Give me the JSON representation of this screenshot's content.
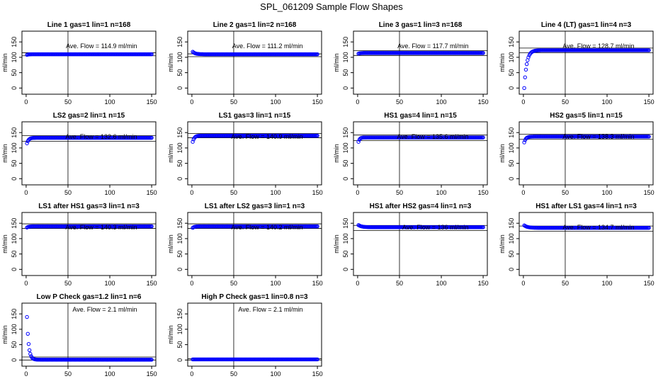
{
  "figure": {
    "title": "SPL_061209  Sample Flow Shapes",
    "point_color": "#0000ff"
  },
  "chart_data": [
    {
      "type": "scatter",
      "title": "Line 1 gas=1 lin=1 n=168",
      "ylabel": "ml/min",
      "ave_flow_label": "Ave. Flow =  114.9  ml/min",
      "ave_flow": 114.9,
      "xlim": [
        0,
        150
      ],
      "ylim": [
        0,
        165
      ],
      "xticks": [
        0,
        50,
        100,
        150
      ],
      "yticks": [
        0,
        50,
        100,
        150
      ],
      "vline_x": 50,
      "hlines": [
        105,
        114.9
      ],
      "shape": {
        "start": 108,
        "plateau": 110,
        "tau": 2
      }
    },
    {
      "type": "scatter",
      "title": "Line 2 gas=1 lin=2 n=168",
      "ylabel": "ml/min",
      "ave_flow_label": "Ave. Flow =  111.2  ml/min",
      "ave_flow": 111.2,
      "xlim": [
        0,
        150
      ],
      "ylim": [
        0,
        165
      ],
      "xticks": [
        0,
        50,
        100,
        150
      ],
      "yticks": [
        0,
        50,
        100,
        150
      ],
      "vline_x": 50,
      "hlines": [
        102,
        111.2
      ],
      "shape": {
        "start": 118,
        "plateau": 110,
        "tau": 3
      }
    },
    {
      "type": "scatter",
      "title": "Line 3 gas=1 lin=3 n=168",
      "ylabel": "ml/min",
      "ave_flow_label": "Ave. Flow =  117.7  ml/min",
      "ave_flow": 117.7,
      "xlim": [
        0,
        150
      ],
      "ylim": [
        0,
        165
      ],
      "xticks": [
        0,
        50,
        100,
        150
      ],
      "yticks": [
        0,
        50,
        100,
        150
      ],
      "vline_x": 50,
      "hlines": [
        106,
        122
      ],
      "shape": {
        "start": 112,
        "plateau": 114,
        "tau": 2
      }
    },
    {
      "type": "scatter",
      "title": "Line 4 (LT) gas=1 lin=4 n=3",
      "ylabel": "ml/min",
      "ave_flow_label": "Ave. Flow =  128.7  ml/min",
      "ave_flow": 128.7,
      "xlim": [
        0,
        150
      ],
      "ylim": [
        0,
        165
      ],
      "xticks": [
        0,
        50,
        100,
        150
      ],
      "yticks": [
        0,
        50,
        100,
        150
      ],
      "vline_x": 50,
      "hlines": [
        115,
        130
      ],
      "shape": {
        "start": 0,
        "plateau": 123,
        "tau": 3
      }
    },
    {
      "type": "scatter",
      "title": "LS2 gas=2 lin=1 n=15",
      "ylabel": "ml/min",
      "ave_flow_label": "Ave. Flow =  132.6  ml/min",
      "ave_flow": 132.6,
      "xlim": [
        0,
        150
      ],
      "ylim": [
        0,
        165
      ],
      "xticks": [
        0,
        50,
        100,
        150
      ],
      "yticks": [
        0,
        50,
        100,
        150
      ],
      "vline_x": 50,
      "hlines": [
        122,
        140
      ],
      "shape": {
        "start": 115,
        "plateau": 133,
        "tau": 2
      }
    },
    {
      "type": "scatter",
      "title": "LS1 gas=3 lin=1 n=15",
      "ylabel": "ml/min",
      "ave_flow_label": "Ave. Flow =  140.9  ml/min",
      "ave_flow": 140.9,
      "xlim": [
        0,
        150
      ],
      "ylim": [
        0,
        165
      ],
      "xticks": [
        0,
        50,
        100,
        150
      ],
      "yticks": [
        0,
        50,
        100,
        150
      ],
      "vline_x": 50,
      "hlines": [
        133,
        147
      ],
      "shape": {
        "start": 120,
        "plateau": 140,
        "tau": 2
      }
    },
    {
      "type": "scatter",
      "title": "HS1 gas=4 lin=1 n=15",
      "ylabel": "ml/min",
      "ave_flow_label": "Ave. Flow =  135.6  ml/min",
      "ave_flow": 135.6,
      "xlim": [
        0,
        150
      ],
      "ylim": [
        0,
        165
      ],
      "xticks": [
        0,
        50,
        100,
        150
      ],
      "yticks": [
        0,
        50,
        100,
        150
      ],
      "vline_x": 50,
      "hlines": [
        124,
        142
      ],
      "shape": {
        "start": 120,
        "plateau": 134,
        "tau": 1.5
      }
    },
    {
      "type": "scatter",
      "title": "HS2 gas=5 lin=1 n=15",
      "ylabel": "ml/min",
      "ave_flow_label": "Ave. Flow =  138.3  ml/min",
      "ave_flow": 138.3,
      "xlim": [
        0,
        150
      ],
      "ylim": [
        0,
        165
      ],
      "xticks": [
        0,
        50,
        100,
        150
      ],
      "yticks": [
        0,
        50,
        100,
        150
      ],
      "vline_x": 50,
      "hlines": [
        128,
        145
      ],
      "shape": {
        "start": 118,
        "plateau": 137,
        "tau": 2
      }
    },
    {
      "type": "scatter",
      "title": "LS1 after HS1 gas=3 lin=1 n=3",
      "ylabel": "ml/min",
      "ave_flow_label": "Ave. Flow =  140.3  ml/min",
      "ave_flow": 140.3,
      "xlim": [
        0,
        150
      ],
      "ylim": [
        0,
        165
      ],
      "xticks": [
        0,
        50,
        100,
        150
      ],
      "yticks": [
        0,
        50,
        100,
        150
      ],
      "vline_x": 50,
      "hlines": [
        133,
        148
      ],
      "shape": {
        "start": 136,
        "plateau": 140,
        "tau": 2
      }
    },
    {
      "type": "scatter",
      "title": "LS1 after LS2 gas=3 lin=1 n=3",
      "ylabel": "ml/min",
      "ave_flow_label": "Ave. Flow =  140.2  ml/min",
      "ave_flow": 140.2,
      "xlim": [
        0,
        150
      ],
      "ylim": [
        0,
        165
      ],
      "xticks": [
        0,
        50,
        100,
        150
      ],
      "yticks": [
        0,
        50,
        100,
        150
      ],
      "vline_x": 50,
      "hlines": [
        133,
        148
      ],
      "shape": {
        "start": 135,
        "plateau": 140,
        "tau": 2
      }
    },
    {
      "type": "scatter",
      "title": "HS1 after HS2 gas=4 lin=1 n=3",
      "ylabel": "ml/min",
      "ave_flow_label": "Ave. Flow =  136  ml/min",
      "ave_flow": 136,
      "xlim": [
        0,
        150
      ],
      "ylim": [
        0,
        165
      ],
      "xticks": [
        0,
        50,
        100,
        150
      ],
      "yticks": [
        0,
        50,
        100,
        150
      ],
      "vline_x": 50,
      "hlines": [
        126,
        143
      ],
      "shape": {
        "start": 144,
        "plateau": 137,
        "tau": 4
      }
    },
    {
      "type": "scatter",
      "title": "HS1 after LS1 gas=4 lin=1 n=3",
      "ylabel": "ml/min",
      "ave_flow_label": "Ave. Flow =  134.7  ml/min",
      "ave_flow": 134.7,
      "xlim": [
        0,
        150
      ],
      "ylim": [
        0,
        165
      ],
      "xticks": [
        0,
        50,
        100,
        150
      ],
      "yticks": [
        0,
        50,
        100,
        150
      ],
      "vline_x": 50,
      "hlines": [
        124,
        141
      ],
      "shape": {
        "start": 143,
        "plateau": 135,
        "tau": 4
      }
    },
    {
      "type": "scatter",
      "title": "Low P Check gas=1.2 lin=1 n=6",
      "ylabel": "ml/min",
      "ave_flow_label": "Ave. Flow =  2.1  ml/min",
      "ave_flow": 2.1,
      "xlim": [
        0,
        150
      ],
      "ylim": [
        0,
        165
      ],
      "xticks": [
        0,
        50,
        100,
        150
      ],
      "yticks": [
        0,
        50,
        100,
        150
      ],
      "vline_x": 50,
      "hlines": [
        0,
        10
      ],
      "shape": {
        "start": 140,
        "plateau": 1,
        "tau": 2
      }
    },
    {
      "type": "scatter",
      "title": "High P Check gas=1 lin=0.8 n=3",
      "ylabel": "ml/min",
      "ave_flow_label": "Ave. Flow =  2.1  ml/min",
      "ave_flow": 2.1,
      "xlim": [
        0,
        150
      ],
      "ylim": [
        0,
        165
      ],
      "xticks": [
        0,
        50,
        100,
        150
      ],
      "yticks": [
        0,
        50,
        100,
        150
      ],
      "vline_x": 50,
      "hlines": [
        0,
        4
      ],
      "shape": {
        "start": 2,
        "plateau": 2,
        "tau": 2
      }
    }
  ]
}
